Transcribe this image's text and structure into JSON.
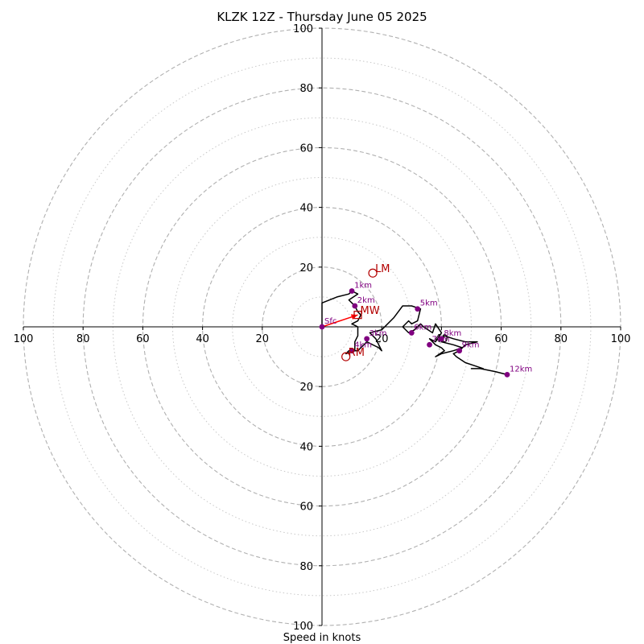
{
  "chart_data": {
    "type": "hodograph",
    "title": "KLZK 12Z - Thursday June 05 2025",
    "xlabel": "Speed in knots",
    "units": "knots",
    "max_speed": 100,
    "ring_major": [
      20,
      40,
      60,
      80,
      100
    ],
    "ring_minor": [
      10,
      30,
      50,
      70,
      90
    ],
    "ticks": {
      "right": [
        "20",
        "40",
        "60",
        "80",
        "100"
      ],
      "left": [
        "100",
        "80",
        "60",
        "40",
        "20"
      ],
      "up": [
        "20",
        "40",
        "60",
        "80",
        "100"
      ],
      "down": [
        "20",
        "40",
        "60",
        "80",
        "100"
      ]
    },
    "colors": {
      "trace": "#000000",
      "height_marker": "#800080",
      "storm_motion": "#b30000",
      "shear_vector": "#ff0000",
      "ring": "#b0b0b0"
    },
    "trace": [
      [
        0,
        0
      ],
      [
        0,
        8
      ],
      [
        5,
        10
      ],
      [
        9,
        11
      ],
      [
        10,
        12
      ],
      [
        12,
        11
      ],
      [
        9,
        9
      ],
      [
        10,
        8
      ],
      [
        11,
        7
      ],
      [
        12,
        5
      ],
      [
        13,
        4
      ],
      [
        12,
        2
      ],
      [
        10,
        1
      ],
      [
        12,
        0
      ],
      [
        12,
        -3
      ],
      [
        11,
        -5
      ],
      [
        11,
        -8
      ],
      [
        8,
        -9
      ],
      [
        9,
        -8
      ],
      [
        12,
        -8
      ],
      [
        15,
        -5
      ],
      [
        19,
        -7
      ],
      [
        20,
        -8
      ],
      [
        18,
        -4
      ],
      [
        16,
        -2
      ],
      [
        20,
        -1
      ],
      [
        24,
        3
      ],
      [
        27,
        7
      ],
      [
        30,
        7
      ],
      [
        33,
        6
      ],
      [
        32,
        2
      ],
      [
        30,
        1
      ],
      [
        29,
        2
      ],
      [
        27,
        0
      ],
      [
        29,
        -2
      ],
      [
        31,
        -1
      ],
      [
        33,
        1
      ],
      [
        34,
        0
      ],
      [
        37,
        -2
      ],
      [
        38,
        1
      ],
      [
        40,
        -2
      ],
      [
        38,
        -5
      ],
      [
        36,
        -4
      ],
      [
        38,
        -6
      ],
      [
        40,
        -7
      ],
      [
        41,
        -8
      ],
      [
        38,
        -10
      ],
      [
        40,
        -9
      ],
      [
        44,
        -8
      ],
      [
        47,
        -7
      ],
      [
        44,
        -6
      ],
      [
        40,
        -5
      ],
      [
        41,
        -3
      ],
      [
        44,
        -4
      ],
      [
        48,
        -5
      ],
      [
        52,
        -5
      ],
      [
        48,
        -6
      ],
      [
        46,
        -8
      ],
      [
        44,
        -9
      ],
      [
        45,
        -10
      ],
      [
        48,
        -12
      ],
      [
        51,
        -13
      ],
      [
        54,
        -14
      ],
      [
        50,
        -14
      ],
      [
        53,
        -14
      ],
      [
        58,
        -15
      ],
      [
        62,
        -16
      ]
    ],
    "height_markers": [
      {
        "label": "Sfc",
        "u": 0,
        "v": 0
      },
      {
        "label": "1km",
        "u": 10,
        "v": 12
      },
      {
        "label": "2km",
        "u": 11,
        "v": 7
      },
      {
        "label": "3km",
        "u": 15,
        "v": -4
      },
      {
        "label": "4km",
        "u": 10,
        "v": -8
      },
      {
        "label": "5km",
        "u": 32,
        "v": 6
      },
      {
        "label": "6km",
        "u": 30,
        "v": -2
      },
      {
        "label": "7km",
        "u": 36,
        "v": -6
      },
      {
        "label": "8km",
        "u": 40,
        "v": -4
      },
      {
        "label": "9km",
        "u": 46,
        "v": -8
      },
      {
        "label": "12km",
        "u": 62,
        "v": -16
      }
    ],
    "storm_motion": {
      "RM": {
        "label": "RM",
        "u": 8,
        "v": -10
      },
      "LM": {
        "label": "LM",
        "u": 17,
        "v": 18
      },
      "MW": {
        "label": "MW",
        "u": 12,
        "v": 4
      }
    },
    "shear_vector": {
      "from_u": 0,
      "from_v": 0,
      "to_u": 12,
      "to_v": 4
    }
  }
}
